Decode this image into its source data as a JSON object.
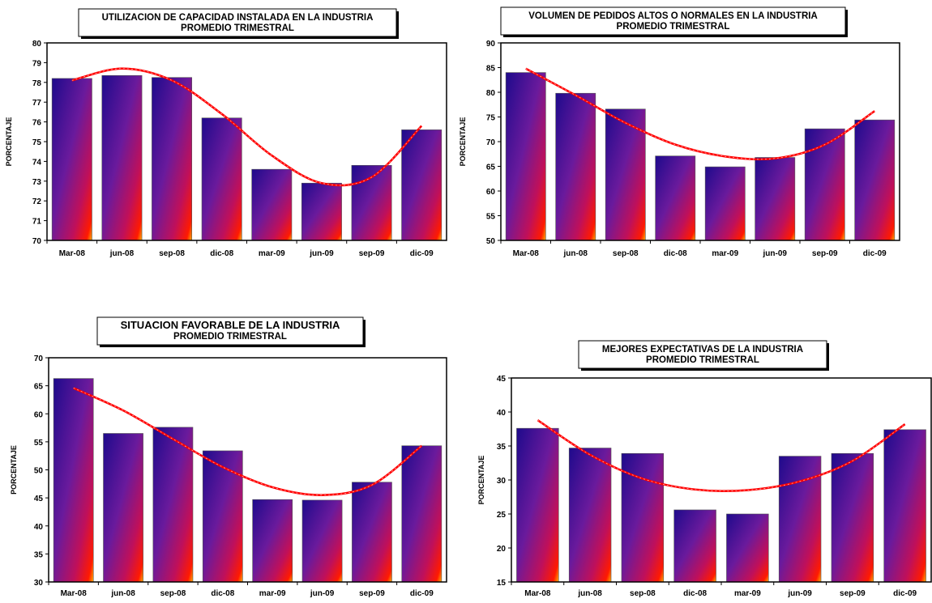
{
  "chart_data": [
    {
      "type": "bar",
      "title_lines": [
        "UTILIZACION DE CAPACIDAD INSTALADA EN LA INDUSTRIA",
        "PROMEDIO TRIMESTRAL"
      ],
      "ylabel": "PORCENTAJE",
      "categories": [
        "Mar-08",
        "jun-08",
        "sep-08",
        "dic-08",
        "mar-09",
        "jun-09",
        "sep-09",
        "dic-09"
      ],
      "values": [
        78.2,
        78.35,
        78.25,
        76.2,
        73.6,
        72.9,
        73.8,
        75.6
      ],
      "trend": [
        78.1,
        78.7,
        78.1,
        76.4,
        74.3,
        72.9,
        73.2,
        75.8
      ],
      "ylim": [
        70,
        80
      ],
      "yticks": [
        70,
        71,
        72,
        73,
        74,
        75,
        76,
        77,
        78,
        79,
        80
      ]
    },
    {
      "type": "bar",
      "title_lines": [
        "VOLUMEN DE PEDIDOS ALTOS O NORMALES EN LA INDUSTRIA",
        "PROMEDIO TRIMESTRAL"
      ],
      "ylabel": "PORCENTAJE",
      "categories": [
        "Mar-08",
        "jun-08",
        "sep-08",
        "dic-08",
        "mar-09",
        "jun-09",
        "sep-09",
        "dic-09"
      ],
      "values": [
        84.0,
        79.8,
        76.6,
        67.1,
        64.9,
        66.8,
        72.6,
        74.4
      ],
      "trend": [
        84.8,
        79.4,
        73.8,
        69.4,
        67.0,
        66.6,
        69.4,
        76.2
      ],
      "ylim": [
        50,
        90
      ],
      "yticks": [
        50,
        55,
        60,
        65,
        70,
        75,
        80,
        85,
        90
      ]
    },
    {
      "type": "bar",
      "title_lines": [
        "SITUACION FAVORABLE DE LA INDUSTRIA",
        "PROMEDIO TRIMESTRAL"
      ],
      "ylabel": "PORCENTAJE",
      "categories": [
        "Mar-08",
        "jun-08",
        "sep-08",
        "dic-08",
        "mar-09",
        "jun-09",
        "sep-09",
        "dic-09"
      ],
      "values": [
        66.3,
        56.5,
        57.6,
        53.4,
        44.7,
        44.6,
        47.8,
        54.3
      ],
      "trend": [
        64.6,
        60.6,
        55.5,
        50.5,
        46.9,
        45.5,
        47.3,
        54.3
      ],
      "ylim": [
        30,
        70
      ],
      "yticks": [
        30,
        35,
        40,
        45,
        50,
        55,
        60,
        65,
        70
      ]
    },
    {
      "type": "bar",
      "title_lines": [
        "MEJORES EXPECTATIVAS DE LA INDUSTRIA",
        "PROMEDIO TRIMESTRAL"
      ],
      "ylabel": "PORCENTAJE",
      "categories": [
        "Mar-08",
        "jun-08",
        "sep-08",
        "dic-08",
        "mar-09",
        "jun-09",
        "sep-09",
        "dic-09"
      ],
      "values": [
        37.6,
        34.7,
        33.9,
        25.6,
        25.0,
        33.5,
        33.9,
        37.4
      ],
      "trend": [
        38.8,
        33.7,
        30.2,
        28.6,
        28.5,
        29.8,
        32.8,
        38.2
      ],
      "ylim": [
        15,
        45
      ],
      "yticks": [
        15,
        20,
        25,
        30,
        35,
        40,
        45
      ]
    }
  ],
  "colors": {
    "bar_top": "#1e0a8c",
    "bar_mid": "#7a1a9a",
    "bar_bottom": "#ff1a00",
    "bar_glow": "#ffd000",
    "trend": "#ff0000",
    "axis": "#000000"
  }
}
